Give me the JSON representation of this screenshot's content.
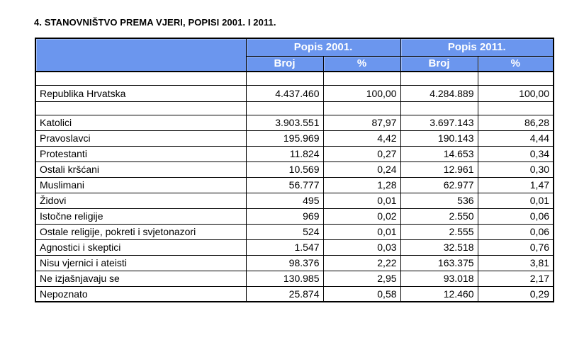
{
  "title": "4. STANOVNIŠTVO PREMA VJERI, POPISI 2001. I 2011.",
  "colors": {
    "header_bg": "#6B96EE",
    "header_text": "#FFFFFF",
    "border": "#000000",
    "page_bg": "#FFFFFF",
    "text": "#000000"
  },
  "table": {
    "header": {
      "popis_2001": "Popis 2001.",
      "popis_2011": "Popis 2011.",
      "broj": "Broj",
      "pct": "%"
    },
    "rows": [
      {
        "label": "Republika Hrvatska",
        "broj_2001": "4.437.460",
        "pct_2001": "100,00",
        "broj_2011": "4.284.889",
        "pct_2011": "100,00"
      },
      {
        "label": "Katolici",
        "broj_2001": "3.903.551",
        "pct_2001": "87,97",
        "broj_2011": "3.697.143",
        "pct_2011": "86,28"
      },
      {
        "label": "Pravoslavci",
        "broj_2001": "195.969",
        "pct_2001": "4,42",
        "broj_2011": "190.143",
        "pct_2011": "4,44"
      },
      {
        "label": "Protestanti",
        "broj_2001": "11.824",
        "pct_2001": "0,27",
        "broj_2011": "14.653",
        "pct_2011": "0,34"
      },
      {
        "label": "Ostali kršćani",
        "broj_2001": "10.569",
        "pct_2001": "0,24",
        "broj_2011": "12.961",
        "pct_2011": "0,30"
      },
      {
        "label": "Muslimani",
        "broj_2001": "56.777",
        "pct_2001": "1,28",
        "broj_2011": "62.977",
        "pct_2011": "1,47"
      },
      {
        "label": "Židovi",
        "broj_2001": "495",
        "pct_2001": "0,01",
        "broj_2011": "536",
        "pct_2011": "0,01"
      },
      {
        "label": "Istočne religije",
        "broj_2001": "969",
        "pct_2001": "0,02",
        "broj_2011": "2.550",
        "pct_2011": "0,06"
      },
      {
        "label": "Ostale religije, pokreti i svjetonazori",
        "broj_2001": "524",
        "pct_2001": "0,01",
        "broj_2011": "2.555",
        "pct_2011": "0,06"
      },
      {
        "label": "Agnostici i skeptici",
        "broj_2001": "1.547",
        "pct_2001": "0,03",
        "broj_2011": "32.518",
        "pct_2011": "0,76"
      },
      {
        "label": "Nisu vjernici i ateisti",
        "broj_2001": "98.376",
        "pct_2001": "2,22",
        "broj_2011": "163.375",
        "pct_2011": "3,81"
      },
      {
        "label": "Ne izjašnjavaju se",
        "broj_2001": "130.985",
        "pct_2001": "2,95",
        "broj_2011": "93.018",
        "pct_2011": "2,17"
      },
      {
        "label": "Nepoznato",
        "broj_2001": "25.874",
        "pct_2001": "0,58",
        "broj_2011": "12.460",
        "pct_2011": "0,29"
      }
    ]
  }
}
